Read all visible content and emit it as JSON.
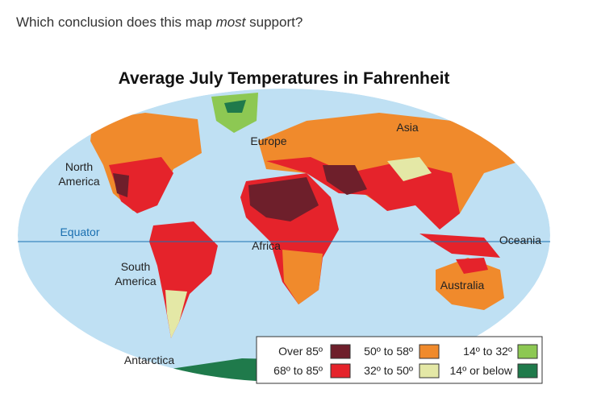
{
  "question": {
    "before": "Which conclusion does this map ",
    "emphasis": "most",
    "after": " support?"
  },
  "map": {
    "title": "Average July Temperatures in Fahrenheit",
    "labels": [
      {
        "lines": [
          "North",
          "America"
        ]
      },
      {
        "lines": [
          "Europe"
        ]
      },
      {
        "lines": [
          "Asia"
        ]
      },
      {
        "lines": [
          "Africa"
        ]
      },
      {
        "lines": [
          "Equator"
        ]
      },
      {
        "lines": [
          "Oceania"
        ]
      },
      {
        "lines": [
          "South",
          "America"
        ]
      },
      {
        "lines": [
          "Australia"
        ]
      },
      {
        "lines": [
          "Antarctica"
        ]
      }
    ],
    "legend": [
      {
        "label": "Over 85º",
        "color": "#6e1f2b"
      },
      {
        "label": "68º to 85º",
        "color": "#e5232b"
      },
      {
        "label": "50º to 58º",
        "color": "#f08a2c"
      },
      {
        "label": "32º to 50º",
        "color": "#e4e8a6"
      },
      {
        "label": "14º to 32º",
        "color": "#8dc853"
      },
      {
        "label": "14º or below",
        "color": "#1f7a4b"
      }
    ]
  }
}
